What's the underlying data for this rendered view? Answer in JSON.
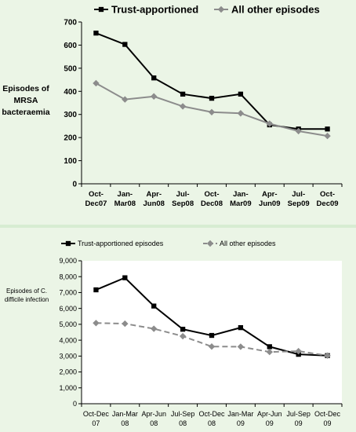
{
  "chart_data": [
    {
      "type": "line",
      "title": "",
      "ylabel_lines": [
        "Episodes of",
        "MRSA",
        "bacteraemia"
      ],
      "xlabel": "",
      "categories": [
        [
          "Oct-",
          "Dec07"
        ],
        [
          "Jan-",
          "Mar08"
        ],
        [
          "Apr-",
          "Jun08"
        ],
        [
          "Jul-",
          "Sep08"
        ],
        [
          "Oct-",
          "Dec08"
        ],
        [
          "Jan-",
          "Mar09"
        ],
        [
          "Apr-",
          "Jun09"
        ],
        [
          "Jul-",
          "Sep09"
        ],
        [
          "Oct-",
          "Dec09"
        ]
      ],
      "yticks": [
        "0",
        "100",
        "200",
        "300",
        "400",
        "500",
        "600",
        "700"
      ],
      "ylim": [
        0,
        700
      ],
      "grid": false,
      "legend_position": "top",
      "series": [
        {
          "name": "Trust-apportioned",
          "values": [
            652,
            603,
            458,
            388,
            370,
            388,
            255,
            237,
            237
          ],
          "color": "#000000",
          "marker": "square",
          "dash": "solid"
        },
        {
          "name": "All other episodes",
          "values": [
            435,
            365,
            378,
            335,
            310,
            305,
            260,
            228,
            207
          ],
          "color": "#8c8c8c",
          "marker": "diamond",
          "dash": "solid"
        }
      ],
      "colors": {
        "background": "#ebf5e6",
        "plot_background": "#ebf5e6"
      }
    },
    {
      "type": "line",
      "title": "",
      "ylabel_lines": [
        "Episodes of C.",
        "difficile infection"
      ],
      "xlabel": "",
      "categories": [
        [
          "Oct-Dec",
          "07"
        ],
        [
          "Jan-Mar",
          "08"
        ],
        [
          "Apr-Jun",
          "08"
        ],
        [
          "Jul-Sep",
          "08"
        ],
        [
          "Oct-Dec",
          "08"
        ],
        [
          "Jan-Mar",
          "09"
        ],
        [
          "Apr-Jun",
          "09"
        ],
        [
          "Jul-Sep",
          "09"
        ],
        [
          "Oct-Dec",
          "09"
        ]
      ],
      "yticks": [
        "0",
        "1,000",
        "2,000",
        "3,000",
        "4,000",
        "5,000",
        "6,000",
        "7,000",
        "8,000",
        "9,000"
      ],
      "ylim": [
        0,
        9000
      ],
      "grid": false,
      "legend_position": "top",
      "series": [
        {
          "name": "Trust-apportioned episodes",
          "values": [
            7170,
            7930,
            6150,
            4690,
            4300,
            4790,
            3590,
            3110,
            3030
          ],
          "color": "#000000",
          "marker": "square",
          "dash": "solid"
        },
        {
          "name": "All other episodes",
          "values": [
            5080,
            5040,
            4720,
            4250,
            3600,
            3590,
            3260,
            3310,
            3030
          ],
          "color": "#8c8c8c",
          "marker": "diamond",
          "dash": "dashed"
        }
      ],
      "colors": {
        "background": "#ebf5e6",
        "plot_background": "#ffffff"
      }
    }
  ]
}
